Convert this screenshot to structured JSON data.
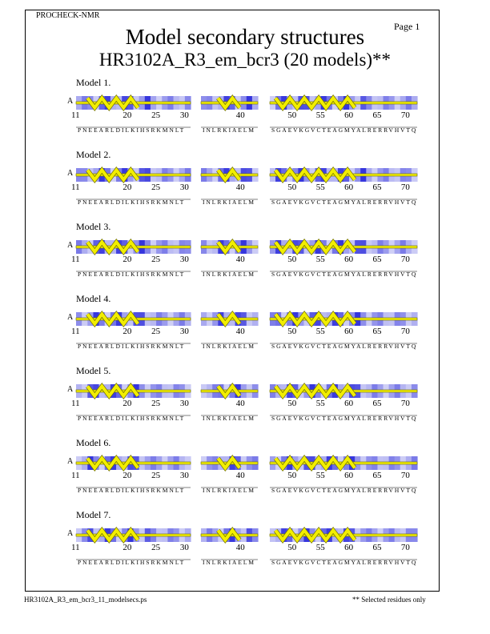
{
  "header": {
    "program": "PROCHECK-NMR",
    "page_label": "Page  1",
    "title": "Model secondary structures",
    "subtitle": "HR3102A_R3_em_bcr3 (20 models)**"
  },
  "footer": {
    "filename": "HR3102A_R3_em_bcr3_11_modelsecs.ps",
    "note": "** Selected residues only"
  },
  "chain_id": "A",
  "segments": [
    {
      "start": 11,
      "end": 31,
      "sequence": "PNEEARLDILKIHSRKMNLT",
      "ticks": [
        {
          "label": "11",
          "residue": 11
        },
        {
          "label": "20",
          "residue": 20
        },
        {
          "label": "25",
          "residue": 25
        },
        {
          "label": "30",
          "residue": 30
        }
      ]
    },
    {
      "start": 33,
      "end": 43,
      "sequence": "INLRKIAELM",
      "ticks": [
        {
          "label": "40",
          "residue": 40
        }
      ]
    },
    {
      "start": 46,
      "end": 72,
      "sequence": "SGAEVKGVCTEAGMYALRERRVHVTQ",
      "ticks": [
        {
          "label": "50",
          "residue": 50
        },
        {
          "label": "55",
          "residue": 55
        },
        {
          "label": "60",
          "residue": 60
        },
        {
          "label": "65",
          "residue": 65
        },
        {
          "label": "70",
          "residue": 70
        }
      ]
    }
  ],
  "models": [
    {
      "label": "Model  1."
    },
    {
      "label": "Model  2."
    },
    {
      "label": "Model  3."
    },
    {
      "label": "Model  4."
    },
    {
      "label": "Model  5."
    },
    {
      "label": "Model  6."
    },
    {
      "label": "Model  7."
    }
  ],
  "colors": {
    "helix_fill": "#f2ee00",
    "helix_stroke": "#6a6a00",
    "shade_dark": "#1414d8",
    "shade_light": "#f0f0fb"
  }
}
